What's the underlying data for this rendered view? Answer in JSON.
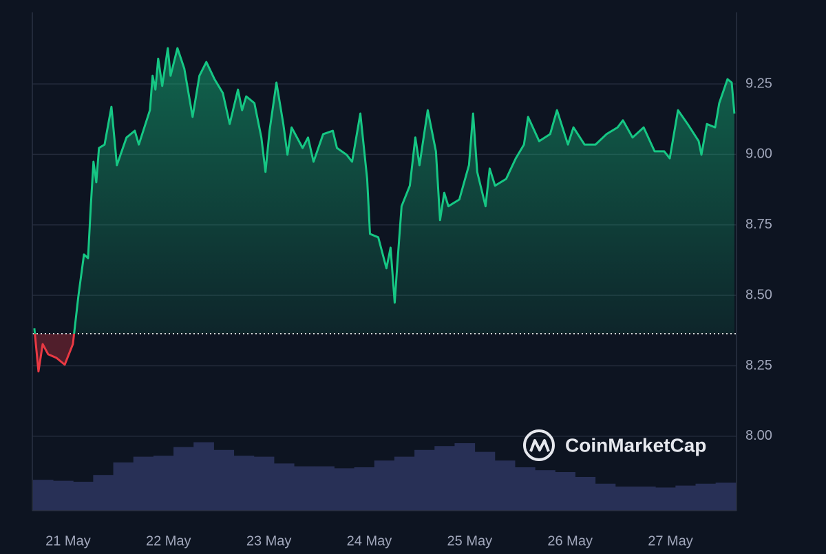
{
  "chart_data": {
    "type": "line",
    "color": "#16c784",
    "down_color": "#ea3943",
    "baseline": 8.364,
    "x": [
      -0.336,
      -0.295,
      -0.253,
      -0.199,
      -0.116,
      -0.034,
      0.048,
      0.103,
      0.158,
      0.199,
      0.226,
      0.253,
      0.281,
      0.308,
      0.363,
      0.432,
      0.486,
      0.582,
      0.664,
      0.705,
      0.815,
      0.842,
      0.87,
      0.897,
      0.938,
      0.993,
      1.021,
      1.089,
      1.158,
      1.24,
      1.308,
      1.377,
      1.459,
      1.541,
      1.61,
      1.692,
      1.733,
      1.774,
      1.856,
      1.925,
      1.966,
      2.007,
      2.075,
      2.144,
      2.185,
      2.226,
      2.336,
      2.39,
      2.445,
      2.541,
      2.637,
      2.678,
      2.774,
      2.829,
      2.911,
      2.979,
      3.007,
      3.089,
      3.171,
      3.212,
      3.253,
      3.281,
      3.322,
      3.404,
      3.459,
      3.5,
      3.582,
      3.664,
      3.705,
      3.747,
      3.788,
      3.897,
      3.993,
      4.034,
      4.075,
      4.158,
      4.199,
      4.253,
      4.363,
      4.459,
      4.541,
      4.582,
      4.692,
      4.801,
      4.87,
      4.979,
      5.034,
      5.144,
      5.253,
      5.363,
      5.473,
      5.527,
      5.623,
      5.733,
      5.842,
      5.938,
      5.993,
      6.075,
      6.171,
      6.281,
      6.308,
      6.363,
      6.445,
      6.486,
      6.568,
      6.61,
      6.637
    ],
    "values": [
      8.383,
      8.23,
      8.327,
      8.291,
      8.278,
      8.254,
      8.327,
      8.498,
      8.645,
      8.632,
      8.816,
      8.974,
      8.901,
      9.023,
      9.035,
      9.169,
      8.962,
      9.06,
      9.084,
      9.035,
      9.157,
      9.279,
      9.23,
      9.34,
      9.243,
      9.377,
      9.279,
      9.377,
      9.304,
      9.133,
      9.279,
      9.328,
      9.267,
      9.218,
      9.108,
      9.23,
      9.157,
      9.206,
      9.182,
      9.06,
      8.938,
      9.084,
      9.255,
      9.108,
      8.999,
      9.096,
      9.023,
      9.06,
      8.974,
      9.072,
      9.084,
      9.023,
      8.999,
      8.974,
      9.145,
      8.913,
      8.718,
      8.706,
      8.596,
      8.669,
      8.474,
      8.62,
      8.816,
      8.889,
      9.06,
      8.962,
      9.157,
      9.011,
      8.767,
      8.864,
      8.816,
      8.84,
      8.962,
      9.145,
      8.938,
      8.816,
      8.95,
      8.889,
      8.913,
      8.986,
      9.035,
      9.133,
      9.047,
      9.072,
      9.157,
      9.035,
      9.096,
      9.035,
      9.035,
      9.072,
      9.096,
      9.121,
      9.06,
      9.096,
      9.011,
      9.011,
      8.986,
      9.157,
      9.108,
      9.047,
      8.999,
      9.108,
      9.096,
      9.182,
      9.267,
      9.255,
      9.145
    ],
    "xlim": [
      -0.356,
      6.658
    ],
    "xticks": [
      {
        "value": 0,
        "label": "21 May"
      },
      {
        "value": 1,
        "label": "22 May"
      },
      {
        "value": 2,
        "label": "23 May"
      },
      {
        "value": 3,
        "label": "24 May"
      },
      {
        "value": 4,
        "label": "25 May"
      },
      {
        "value": 5,
        "label": "26 May"
      },
      {
        "value": 6,
        "label": "27 May"
      }
    ],
    "ylim": [
      7.736,
      9.504
    ],
    "yticks": [
      {
        "value": 8,
        "label": "8.00"
      },
      8.25,
      {
        "value": 8.5,
        "label": "8.50"
      },
      8.75,
      {
        "value": 9,
        "label": "9.00"
      },
      9.25
    ],
    "grid": true,
    "volume": {
      "color": "#283056",
      "bar_width": 0.2,
      "x": [
        -0.35,
        -0.15,
        0.05,
        0.25,
        0.45,
        0.65,
        0.85,
        1.05,
        1.25,
        1.45,
        1.65,
        1.85,
        2.05,
        2.25,
        2.45,
        2.65,
        2.85,
        3.05,
        3.25,
        3.45,
        3.65,
        3.85,
        4.05,
        4.25,
        4.45,
        4.65,
        4.85,
        5.05,
        5.25,
        5.45,
        5.65,
        5.85,
        6.05,
        6.25,
        6.45
      ],
      "values": [
        32,
        31,
        30,
        37,
        50,
        56,
        57,
        66,
        71,
        63,
        57,
        56,
        49,
        46,
        46,
        44,
        45,
        52,
        56,
        63,
        67,
        70,
        61,
        52,
        45,
        42,
        40,
        35,
        28,
        25,
        25,
        24,
        26,
        28,
        29
      ]
    },
    "y2lim": [
      0,
      100
    ],
    "watermark": "CoinMarketCap"
  }
}
